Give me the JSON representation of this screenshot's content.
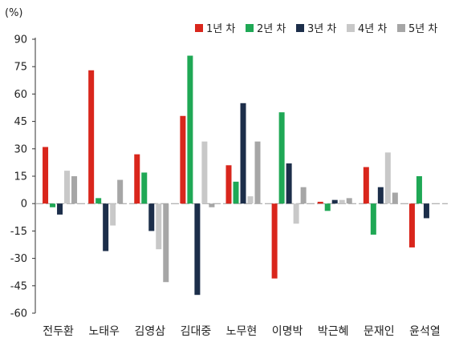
{
  "chart_data": {
    "type": "bar",
    "unit": "(%)",
    "categories": [
      "전두환",
      "노태우",
      "김영삼",
      "김대중",
      "노무현",
      "이명박",
      "박근혜",
      "문재인",
      "윤석열"
    ],
    "series": [
      {
        "name": "1년 차",
        "color": "#d9261c",
        "values": [
          31,
          73,
          27,
          48,
          21,
          -41,
          1,
          20,
          -24
        ]
      },
      {
        "name": "2년 차",
        "color": "#1fa855",
        "values": [
          -2,
          3,
          17,
          81,
          12,
          50,
          -4,
          -17,
          15
        ]
      },
      {
        "name": "3년 차",
        "color": "#1c2e4a",
        "values": [
          -6,
          -26,
          -15,
          -50,
          55,
          22,
          2,
          9,
          -8
        ]
      },
      {
        "name": "4년 차",
        "color": "#c8c8c8",
        "values": [
          18,
          -12,
          -25,
          34,
          4,
          -11,
          2,
          28,
          null
        ]
      },
      {
        "name": "5년 차",
        "color": "#a6a6a6",
        "values": [
          15,
          13,
          -43,
          -2,
          34,
          9,
          3,
          6,
          null
        ]
      }
    ],
    "yticks": [
      "90",
      "75",
      "60",
      "45",
      "30",
      "15",
      "0",
      "-15",
      "-30",
      "-45",
      "-60"
    ],
    "ylim": [
      -60,
      90
    ],
    "grid": false,
    "legend_position": "top-right",
    "title": "",
    "xlabel": "",
    "ylabel": ""
  }
}
